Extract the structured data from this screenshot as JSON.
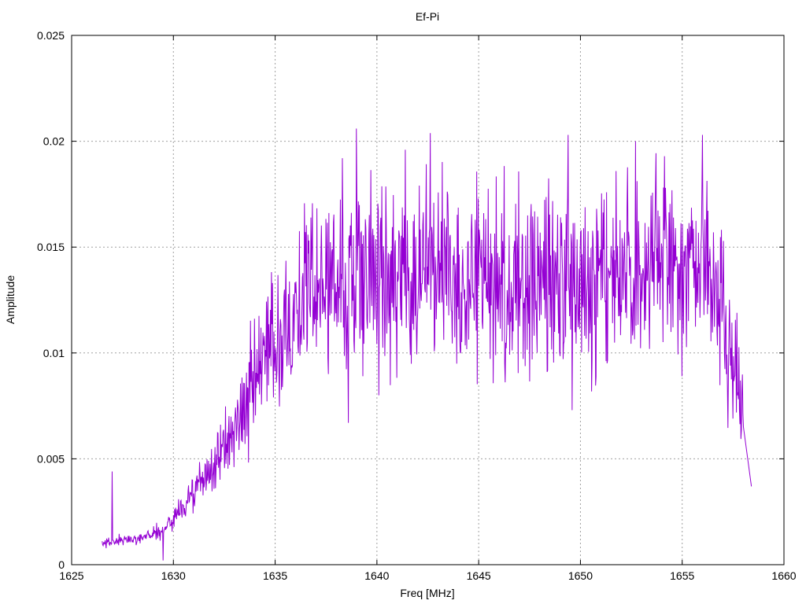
{
  "chart_data": {
    "type": "line",
    "title": "Ef-Pi",
    "xlabel": "Freq [MHz]",
    "ylabel": "Amplitude",
    "xlim": [
      1625,
      1660
    ],
    "ylim": [
      0,
      0.025
    ],
    "x_ticks": [
      "1625",
      "1630",
      "1635",
      "1640",
      "1645",
      "1650",
      "1655",
      "1660"
    ],
    "y_ticks": [
      "0",
      "0.005",
      "0.01",
      "0.015",
      "0.02",
      "0.025"
    ],
    "grid": true,
    "line_color": "#9400d3",
    "x_range": [
      1626.5,
      1658.4
    ],
    "envelope": [
      {
        "x": 1626.5,
        "y": 0.001
      },
      {
        "x": 1628.0,
        "y": 0.0012
      },
      {
        "x": 1629.5,
        "y": 0.0016
      },
      {
        "x": 1630.5,
        "y": 0.0028
      },
      {
        "x": 1631.5,
        "y": 0.004
      },
      {
        "x": 1632.5,
        "y": 0.0055
      },
      {
        "x": 1633.5,
        "y": 0.0075
      },
      {
        "x": 1634.5,
        "y": 0.0095
      },
      {
        "x": 1635.5,
        "y": 0.0115
      },
      {
        "x": 1636.5,
        "y": 0.0128
      },
      {
        "x": 1638.0,
        "y": 0.0135
      },
      {
        "x": 1640.0,
        "y": 0.0138
      },
      {
        "x": 1643.0,
        "y": 0.014
      },
      {
        "x": 1646.0,
        "y": 0.0137
      },
      {
        "x": 1648.0,
        "y": 0.013
      },
      {
        "x": 1650.0,
        "y": 0.0132
      },
      {
        "x": 1652.0,
        "y": 0.014
      },
      {
        "x": 1654.0,
        "y": 0.014
      },
      {
        "x": 1655.5,
        "y": 0.0142
      },
      {
        "x": 1656.5,
        "y": 0.0138
      },
      {
        "x": 1657.2,
        "y": 0.011
      },
      {
        "x": 1657.8,
        "y": 0.008
      },
      {
        "x": 1658.4,
        "y": 0.0037
      }
    ],
    "peaks": [
      {
        "x": 1627.0,
        "y": 0.0044
      },
      {
        "x": 1638.3,
        "y": 0.0192
      },
      {
        "x": 1639.0,
        "y": 0.0206
      },
      {
        "x": 1641.4,
        "y": 0.0196
      },
      {
        "x": 1649.4,
        "y": 0.0203
      },
      {
        "x": 1652.7,
        "y": 0.02
      },
      {
        "x": 1656.0,
        "y": 0.0203
      }
    ],
    "troughs": [
      {
        "x": 1629.5,
        "y": 0.0002
      },
      {
        "x": 1638.6,
        "y": 0.0067
      },
      {
        "x": 1640.1,
        "y": 0.008
      },
      {
        "x": 1649.6,
        "y": 0.0073
      },
      {
        "x": 1655.0,
        "y": 0.0089
      },
      {
        "x": 1657.5,
        "y": 0.0069
      }
    ]
  }
}
